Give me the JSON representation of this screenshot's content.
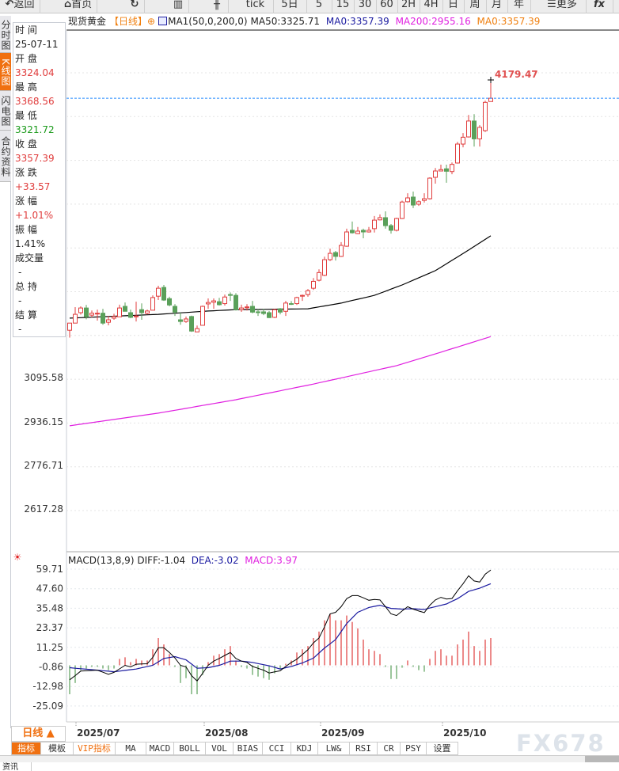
{
  "toolbar": {
    "items": [
      {
        "label": "返回",
        "icon": "back-arrow-icon"
      },
      {
        "label": "首页",
        "icon": "home-icon"
      },
      {
        "label": "",
        "icon": "refresh-icon"
      },
      {
        "label": "",
        "icon": "chart-bars-icon"
      },
      {
        "label": "",
        "icon": "indicator-icon"
      },
      {
        "label": "tick"
      },
      {
        "label": "5日"
      },
      {
        "label": "5"
      },
      {
        "label": "15"
      },
      {
        "label": "30"
      },
      {
        "label": "60"
      },
      {
        "label": "2H"
      },
      {
        "label": "4H"
      },
      {
        "label": "日"
      },
      {
        "label": "周"
      },
      {
        "label": "月"
      },
      {
        "label": "年"
      },
      {
        "label": "更多",
        "icon": "menu-icon"
      },
      {
        "label": "fx"
      }
    ]
  },
  "header": {
    "symbol": "现货黄金",
    "period": "【日线】",
    "ma_label": "MA1(50,0,200,0)",
    "ma50": "MA50:3325.71",
    "ma0a": "MA0:3357.39",
    "ma200": "MA200:2955.16",
    "ma0b": "MA0:3357.39",
    "colors": {
      "ma50": "#000000",
      "ma0a": "#1a1aa0",
      "ma200": "#e020e0",
      "ma0b": "#f08010"
    }
  },
  "side_tabs": [
    "分时图",
    "K线图",
    "闪电图",
    "合约资料"
  ],
  "info": {
    "time_label": "时 间",
    "time": "25-07-11",
    "open_label": "开 盘",
    "open": "3324.04",
    "high_label": "最 高",
    "high": "3368.56",
    "low_label": "最 低",
    "low": "3321.72",
    "close_label": "收 盘",
    "close": "3357.39",
    "change_label": "涨 跌",
    "change": "+33.57",
    "pct_label": "涨 幅",
    "pct": "+1.01%",
    "amp_label": "振 幅",
    "amp": "1.41%",
    "vol_label": "成交量",
    "vol": "-",
    "oi_label": "总 持",
    "oi": "-",
    "settle_label": "结 算",
    "settle": "-"
  },
  "chart_data": [
    {
      "type": "candlestick",
      "name": "现货黄金 日线",
      "yticks": [
        "3095.58",
        "2936.15",
        "2776.71",
        "2617.28"
      ],
      "max_label": "4179.47",
      "last_price": 4113,
      "x_labels": [
        "2025/07",
        "2025/08",
        "2025/09",
        "2025/10"
      ],
      "colors": {
        "up": "#e03c3c",
        "down": "#5aa05a",
        "ma50": "#000000",
        "ma200": "#e020e0",
        "last": "#1e88ff"
      },
      "ohlc": [
        [
          3268,
          3294,
          3241,
          3294
        ],
        [
          3294,
          3352,
          3294,
          3326
        ],
        [
          3332,
          3355,
          3325,
          3349
        ],
        [
          3349,
          3360,
          3308,
          3317
        ],
        [
          3323,
          3340,
          3315,
          3330
        ],
        [
          3329,
          3343,
          3303,
          3330
        ],
        [
          3330,
          3346,
          3288,
          3294
        ],
        [
          3297,
          3320,
          3286,
          3306
        ],
        [
          3312,
          3328,
          3306,
          3318
        ],
        [
          3317,
          3361,
          3317,
          3349
        ],
        [
          3355,
          3369,
          3337,
          3337
        ],
        [
          3332,
          3343,
          3312,
          3315
        ],
        [
          3317,
          3372,
          3300,
          3320
        ],
        [
          3343,
          3366,
          3306,
          3332
        ],
        [
          3330,
          3343,
          3326,
          3338
        ],
        [
          3341,
          3395,
          3341,
          3387
        ],
        [
          3392,
          3430,
          3378,
          3421
        ],
        [
          3424,
          3433,
          3375,
          3378
        ],
        [
          3383,
          3390,
          3355,
          3360
        ],
        [
          3355,
          3363,
          3320,
          3334
        ],
        [
          3306,
          3332,
          3288,
          3300
        ],
        [
          3300,
          3318,
          3295,
          3309
        ],
        [
          3318,
          3321,
          3262,
          3265
        ],
        [
          3262,
          3285,
          3262,
          3274
        ],
        [
          3286,
          3358,
          3286,
          3355
        ],
        [
          3364,
          3384,
          3346,
          3369
        ],
        [
          3370,
          3384,
          3346,
          3375
        ],
        [
          3372,
          3386,
          3358,
          3361
        ],
        [
          3365,
          3398,
          3358,
          3389
        ],
        [
          3398,
          3406,
          3375,
          3395
        ],
        [
          3395,
          3403,
          3340,
          3343
        ],
        [
          3343,
          3361,
          3335,
          3349
        ],
        [
          3350,
          3363,
          3340,
          3353
        ],
        [
          3355,
          3375,
          3330,
          3334
        ],
        [
          3335,
          3346,
          3320,
          3333
        ],
        [
          3335,
          3346,
          3323,
          3329
        ],
        [
          3332,
          3338,
          3312,
          3314
        ],
        [
          3315,
          3346,
          3312,
          3343
        ],
        [
          3346,
          3349,
          3326,
          3334
        ],
        [
          3337,
          3375,
          3320,
          3367
        ],
        [
          3365,
          3374,
          3360,
          3363
        ],
        [
          3365,
          3390,
          3360,
          3387
        ],
        [
          3392,
          3398,
          3375,
          3395
        ],
        [
          3398,
          3418,
          3390,
          3412
        ],
        [
          3421,
          3458,
          3415,
          3446
        ],
        [
          3450,
          3490,
          3446,
          3478
        ],
        [
          3468,
          3536,
          3465,
          3525
        ],
        [
          3525,
          3565,
          3520,
          3548
        ],
        [
          3551,
          3557,
          3522,
          3537
        ],
        [
          3537,
          3589,
          3535,
          3577
        ],
        [
          3574,
          3638,
          3572,
          3626
        ],
        [
          3632,
          3664,
          3620,
          3623
        ],
        [
          3620,
          3644,
          3618,
          3629
        ],
        [
          3632,
          3638,
          3603,
          3626
        ],
        [
          3626,
          3644,
          3624,
          3632
        ],
        [
          3638,
          3684,
          3624,
          3669
        ],
        [
          3670,
          3690,
          3668,
          3678
        ],
        [
          3678,
          3701,
          3638,
          3649
        ],
        [
          3649,
          3655,
          3620,
          3632
        ],
        [
          3632,
          3678,
          3628,
          3675
        ],
        [
          3675,
          3740,
          3673,
          3735
        ],
        [
          3736,
          3767,
          3733,
          3750
        ],
        [
          3753,
          3773,
          3713,
          3724
        ],
        [
          3727,
          3741,
          3721,
          3736
        ],
        [
          3741,
          3767,
          3733,
          3747
        ],
        [
          3747,
          3825,
          3744,
          3822
        ],
        [
          3825,
          3859,
          3802,
          3848
        ],
        [
          3848,
          3871,
          3848,
          3853
        ],
        [
          3856,
          3871,
          3805,
          3847
        ],
        [
          3846,
          3879,
          3836,
          3872
        ],
        [
          3877,
          3954,
          3875,
          3946
        ],
        [
          3946,
          3986,
          3934,
          3971
        ],
        [
          3972,
          4052,
          3970,
          4030
        ],
        [
          4030,
          4055,
          3937,
          3965
        ],
        [
          3965,
          4015,
          3937,
          4007
        ],
        [
          3995,
          4104,
          3990,
          4098
        ],
        [
          4101,
          4179.47,
          4101,
          4113
        ]
      ],
      "ma50": [
        [
          0,
          3312
        ],
        [
          16,
          3326
        ],
        [
          25,
          3338
        ],
        [
          30,
          3343
        ],
        [
          43,
          3346
        ],
        [
          49,
          3367
        ],
        [
          55,
          3395
        ],
        [
          60,
          3433
        ],
        [
          66,
          3485
        ],
        [
          72,
          3560
        ],
        [
          76,
          3612
        ]
      ],
      "ma200": [
        [
          0,
          2920
        ],
        [
          16,
          2966
        ],
        [
          30,
          3015
        ],
        [
          44,
          3072
        ],
        [
          59,
          3139
        ],
        [
          67,
          3188
        ],
        [
          76,
          3245
        ]
      ]
    },
    {
      "type": "macd",
      "title": "MACD(13,8,9)",
      "diff_label": "DIFF:-1.04",
      "dea_label": "DEA:-3.02",
      "macd_label": "MACD:3.97",
      "yticks": [
        "59.71",
        "47.60",
        "35.48",
        "23.37",
        "11.25",
        "-0.86",
        "-12.98",
        "-25.09"
      ],
      "colors": {
        "diff": "#000000",
        "dea": "#1a1aa0",
        "pos": "#e03c3c",
        "neg": "#5aa05a",
        "macd_label": "#e020e0"
      },
      "hist": [
        -18,
        -11,
        -3,
        -2,
        -1,
        -1,
        -2,
        -3,
        -2,
        4,
        5,
        2,
        4,
        3,
        3,
        10,
        17,
        13,
        7,
        -1,
        -11,
        -8,
        -18,
        -18,
        -6,
        2,
        6,
        7,
        10,
        12,
        3,
        -1,
        -2,
        -6,
        -7,
        -8,
        -9,
        -5,
        -2,
        1,
        3,
        8,
        10,
        12,
        17,
        21,
        28,
        32,
        28,
        28,
        31,
        27,
        23,
        16,
        10,
        9,
        7,
        -1,
        -8.5,
        -8.5,
        -1.5,
        3,
        -1,
        -3,
        -4,
        4,
        9,
        10,
        6,
        6,
        13,
        16,
        21,
        12,
        9,
        16,
        17
      ],
      "diff": [
        [
          0,
          -9
        ],
        [
          1,
          -6.4
        ],
        [
          2,
          -3.6
        ],
        [
          5,
          -3
        ],
        [
          7,
          -5.6
        ],
        [
          8,
          -4.4
        ],
        [
          10,
          0
        ],
        [
          11,
          -1
        ],
        [
          12,
          0.7
        ],
        [
          14,
          1
        ],
        [
          15,
          5
        ],
        [
          16,
          11
        ],
        [
          17,
          11
        ],
        [
          18,
          8
        ],
        [
          19,
          4.6
        ],
        [
          20,
          0
        ],
        [
          21,
          -1
        ],
        [
          22,
          -6.4
        ],
        [
          23,
          -9.7
        ],
        [
          24,
          -5
        ],
        [
          25,
          0
        ],
        [
          26,
          2.6
        ],
        [
          27,
          4.3
        ],
        [
          29,
          8
        ],
        [
          30,
          4.3
        ],
        [
          31,
          2.6
        ],
        [
          32,
          1.8
        ],
        [
          33,
          -0.7
        ],
        [
          35,
          -3
        ],
        [
          36,
          -4.8
        ],
        [
          38,
          -3.4
        ],
        [
          39,
          -0.7
        ],
        [
          40,
          1.8
        ],
        [
          41,
          3.8
        ],
        [
          42,
          6.7
        ],
        [
          43,
          9.7
        ],
        [
          44,
          14
        ],
        [
          45,
          17
        ],
        [
          46,
          24
        ],
        [
          47,
          32
        ],
        [
          48,
          33
        ],
        [
          49,
          36.5
        ],
        [
          50,
          41.5
        ],
        [
          51,
          43.4
        ],
        [
          52,
          43.4
        ],
        [
          53,
          42
        ],
        [
          54,
          40.5
        ],
        [
          55,
          41
        ],
        [
          56,
          40.7
        ],
        [
          57,
          36.5
        ],
        [
          58,
          32
        ],
        [
          59,
          31
        ],
        [
          60,
          33.8
        ],
        [
          61,
          36.5
        ],
        [
          62,
          35
        ],
        [
          63,
          33.8
        ],
        [
          64,
          32.8
        ],
        [
          65,
          37.4
        ],
        [
          66,
          40.7
        ],
        [
          67,
          42.3
        ],
        [
          68,
          41.3
        ],
        [
          69,
          41.6
        ],
        [
          70,
          46.4
        ],
        [
          71,
          50.8
        ],
        [
          72,
          55.7
        ],
        [
          73,
          52.5
        ],
        [
          74,
          51.8
        ],
        [
          75,
          56.7
        ],
        [
          76,
          59.3
        ]
      ],
      "dea": [
        [
          0,
          -1.5
        ],
        [
          5,
          -3
        ],
        [
          8,
          -4
        ],
        [
          12,
          -2.3
        ],
        [
          15,
          0
        ],
        [
          17,
          4.3
        ],
        [
          19,
          5.4
        ],
        [
          21,
          3.4
        ],
        [
          23,
          -1.8
        ],
        [
          25,
          -1.5
        ],
        [
          27,
          0
        ],
        [
          29,
          2.6
        ],
        [
          31,
          2.6
        ],
        [
          33,
          1.8
        ],
        [
          36,
          -0.3
        ],
        [
          38,
          -2.3
        ],
        [
          40,
          -0.7
        ],
        [
          42,
          1.5
        ],
        [
          44,
          4.5
        ],
        [
          46,
          10.8
        ],
        [
          48,
          16
        ],
        [
          50,
          26
        ],
        [
          52,
          33
        ],
        [
          54,
          36
        ],
        [
          56,
          37.4
        ],
        [
          58,
          35.4
        ],
        [
          60,
          35
        ],
        [
          62,
          35.2
        ],
        [
          64,
          34.8
        ],
        [
          66,
          36.5
        ],
        [
          68,
          38.2
        ],
        [
          70,
          41.5
        ],
        [
          72,
          46
        ],
        [
          74,
          48
        ],
        [
          76,
          50.8
        ]
      ]
    }
  ],
  "period_selector": {
    "label": "日线 ▲"
  },
  "indicator_tabs": [
    "指标",
    "模板",
    "VIP指标",
    "MA",
    "MACD",
    "BOLL",
    "VOL",
    "BIAS",
    "CCI",
    "KDJ",
    "LW&",
    "RSI",
    "CR",
    "PSY",
    "设置"
  ],
  "watermark": "FX678",
  "bottom": {
    "news_tab": "资讯"
  }
}
